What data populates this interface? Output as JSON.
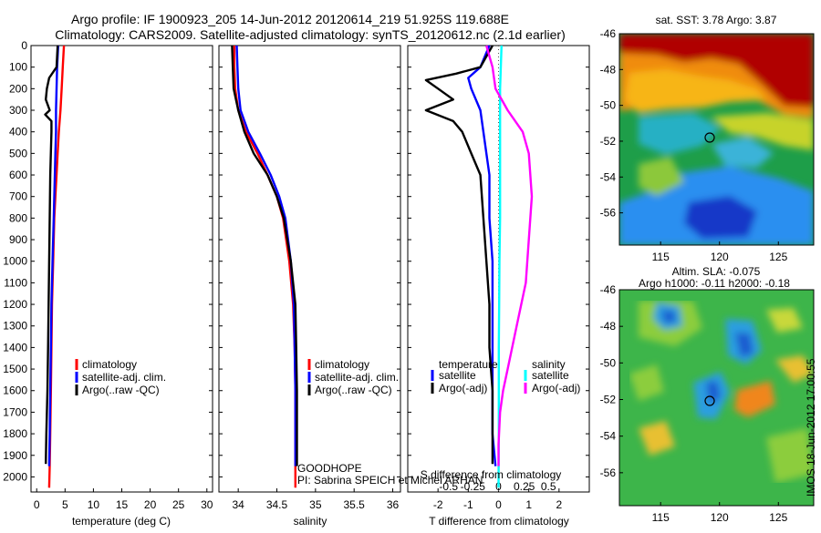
{
  "header": {
    "line1": "Argo profile: IF 1900923_205 14-Jun-2012 20120614_219 51.925S 119.688E",
    "line2": "Climatology: CARS2009. Satellite-adjusted climatology: synTS_20120612.nc (2.1d earlier)"
  },
  "colors": {
    "climatology": "#ff0000",
    "satellite_adj": "#0000ff",
    "argo": "#000000",
    "sat_sal": "#00ffff",
    "argo_sal_diff": "#ff00ff"
  },
  "chart_data": [
    {
      "type": "line",
      "id": "temperature",
      "xlabel": "temperature (deg C)",
      "xlim": [
        -1,
        31
      ],
      "xticks": [
        0,
        5,
        10,
        15,
        20,
        25,
        30
      ],
      "ylim": [
        2070,
        0
      ],
      "yticks": [
        0,
        100,
        200,
        300,
        400,
        500,
        600,
        700,
        800,
        900,
        1000,
        1100,
        1200,
        1300,
        1400,
        1500,
        1600,
        1700,
        1800,
        1900,
        2000
      ],
      "legend": [
        "climatology",
        "satellite-adj. clim.",
        "Argo(..raw -QC)"
      ],
      "series": [
        {
          "name": "climatology",
          "color": "#ff0000",
          "x": [
            4.8,
            4.6,
            4.4,
            4.2,
            3.9,
            3.7,
            3.5,
            3.3,
            3.1,
            2.9,
            2.7,
            2.6,
            2.5,
            2.4,
            2.3,
            2.2
          ],
          "y": [
            0,
            100,
            200,
            300,
            400,
            500,
            600,
            700,
            800,
            1000,
            1200,
            1400,
            1600,
            1800,
            1950,
            2050
          ]
        },
        {
          "name": "satellite-adj. clim.",
          "color": "#0000ff",
          "x": [
            3.8,
            3.6,
            3.5,
            3.4,
            3.4,
            3.3,
            3.2,
            3.1,
            3.0,
            2.8,
            2.6,
            2.5,
            2.4,
            2.3,
            2.2
          ],
          "y": [
            0,
            100,
            200,
            300,
            400,
            500,
            600,
            700,
            800,
            1000,
            1200,
            1400,
            1600,
            1800,
            1950
          ]
        },
        {
          "name": "Argo(..raw -QC)",
          "color": "#000000",
          "x": [
            3.7,
            3.5,
            2.2,
            1.8,
            1.6,
            2.3,
            1.5,
            2.6,
            2.6,
            2.4,
            2.3,
            2.2,
            2.1,
            2.0,
            1.9,
            1.7,
            1.6
          ],
          "y": [
            0,
            100,
            150,
            200,
            250,
            300,
            320,
            350,
            400,
            600,
            800,
            1000,
            1200,
            1400,
            1600,
            1800,
            1940
          ]
        }
      ]
    },
    {
      "type": "line",
      "id": "salinity",
      "xlabel": "salinity",
      "xlim": [
        33.75,
        36.1
      ],
      "xticks": [
        34,
        34.5,
        35,
        35.5,
        36
      ],
      "ylim": [
        2070,
        0
      ],
      "legend": [
        "climatology",
        "satellite-adj. clim.",
        "Argo(..raw -QC)"
      ],
      "series": [
        {
          "name": "climatology",
          "color": "#ff0000",
          "x": [
            33.95,
            33.95,
            33.96,
            34.0,
            34.1,
            34.25,
            34.38,
            34.5,
            34.58,
            34.66,
            34.71,
            34.73,
            34.74,
            34.74,
            34.74,
            34.74
          ],
          "y": [
            0,
            100,
            200,
            300,
            400,
            500,
            600,
            700,
            800,
            1000,
            1200,
            1400,
            1600,
            1800,
            1950,
            2050
          ]
        },
        {
          "name": "satellite-adj. clim.",
          "color": "#0000ff",
          "x": [
            33.98,
            33.99,
            34.0,
            34.03,
            34.13,
            34.28,
            34.42,
            34.53,
            34.61,
            34.68,
            34.72,
            34.73,
            34.74,
            34.74,
            34.74
          ],
          "y": [
            0,
            100,
            200,
            300,
            400,
            500,
            600,
            700,
            800,
            1000,
            1200,
            1400,
            1600,
            1800,
            1950
          ]
        },
        {
          "name": "Argo(..raw -QC)",
          "color": "#000000",
          "x": [
            33.92,
            33.93,
            33.94,
            34.0,
            34.08,
            34.2,
            34.38,
            34.5,
            34.59,
            34.68,
            34.74,
            34.75,
            34.76,
            34.76,
            34.76,
            34.76
          ],
          "y": [
            0,
            100,
            200,
            300,
            400,
            500,
            600,
            700,
            800,
            1000,
            1200,
            1400,
            1600,
            1800,
            1940,
            1950
          ]
        }
      ],
      "annotations": [
        "GOODHOPE",
        "PI: Sabrina SPEICH et Michel ARHAN"
      ]
    },
    {
      "type": "line",
      "id": "difference",
      "xlabel": "T difference from climatology",
      "xlabel_top": "S difference from climatology",
      "xlim": [
        -3,
        3
      ],
      "xticks": [
        -2,
        -1,
        0,
        1,
        2
      ],
      "sticks": [
        "-0.5",
        "-0.25",
        "0",
        "0.25",
        "0.5"
      ],
      "ylim": [
        2070,
        0
      ],
      "legend_groups": {
        "temperature": [
          "satellite",
          "Argo(-adj)"
        ],
        "salinity": [
          "satellite",
          "Argo(-adj)"
        ]
      },
      "series": [
        {
          "name": "satellite",
          "group": "temperature",
          "color": "#0000ff",
          "x": [
            -0.3,
            -0.6,
            -1.0,
            -0.9,
            -0.6,
            -0.5,
            -0.4,
            -0.3,
            -0.3,
            -0.2,
            -0.2,
            -0.2,
            -0.2,
            -0.2,
            -0.1
          ],
          "y": [
            0,
            100,
            150,
            200,
            300,
            400,
            500,
            600,
            800,
            1000,
            1200,
            1400,
            1600,
            1800,
            1950
          ]
        },
        {
          "name": "Argo(-adj)",
          "group": "temperature",
          "color": "#000000",
          "x": [
            -0.2,
            -0.6,
            -1.4,
            -2.4,
            -2.0,
            -1.5,
            -2.4,
            -1.5,
            -1.2,
            -0.9,
            -0.6,
            -0.5,
            -0.4,
            -0.3,
            -0.3,
            -0.2,
            -0.2,
            -0.2
          ],
          "y": [
            0,
            100,
            130,
            160,
            200,
            250,
            300,
            350,
            400,
            500,
            600,
            800,
            1000,
            1200,
            1400,
            1600,
            1800,
            1940
          ]
        },
        {
          "name": "satellite",
          "group": "salinity",
          "color": "#00ffff",
          "x": [
            0.1,
            0.05,
            0.05,
            0.05,
            0.05,
            0.03,
            0.02,
            0.01,
            0.01,
            0.01,
            0.0
          ],
          "y": [
            0,
            200,
            400,
            600,
            800,
            1000,
            1200,
            1400,
            1600,
            1800,
            2050
          ]
        },
        {
          "name": "Argo(-adj)",
          "group": "salinity",
          "color": "#ff00ff",
          "x": [
            -0.4,
            -0.2,
            -0.1,
            0.3,
            0.8,
            1.0,
            1.1,
            1.0,
            0.9,
            0.6,
            0.3,
            0.15,
            0.05,
            0.0,
            0.0
          ],
          "y": [
            0,
            100,
            200,
            300,
            400,
            500,
            700,
            900,
            1100,
            1300,
            1500,
            1600,
            1700,
            1850,
            1950
          ]
        }
      ]
    },
    {
      "type": "heatmap",
      "id": "sst_map",
      "title": "sat. SST: 3.78 Argo: 3.87",
      "xticks": [
        115,
        120,
        125
      ],
      "yticks": [
        -46,
        -48,
        -50,
        -52,
        -54,
        -56
      ],
      "xlim": [
        111.5,
        128
      ],
      "ylim": [
        -57.8,
        -46
      ],
      "marker": {
        "lon": 119.688,
        "lat": -51.925
      }
    },
    {
      "type": "heatmap",
      "id": "sla_map",
      "title_lines": [
        "Altim. SLA: -0.075",
        "Argo h1000: -0.11 h2000: -0.18"
      ],
      "xticks": [
        115,
        120,
        125
      ],
      "yticks": [
        -46,
        -48,
        -50,
        -52,
        -54,
        -56
      ],
      "xlim": [
        111.5,
        128
      ],
      "ylim": [
        -57.8,
        -46
      ],
      "marker": {
        "lon": 119.688,
        "lat": -51.925
      },
      "side_label": "IMOS 18-Jun-2012 17:00:55"
    }
  ]
}
